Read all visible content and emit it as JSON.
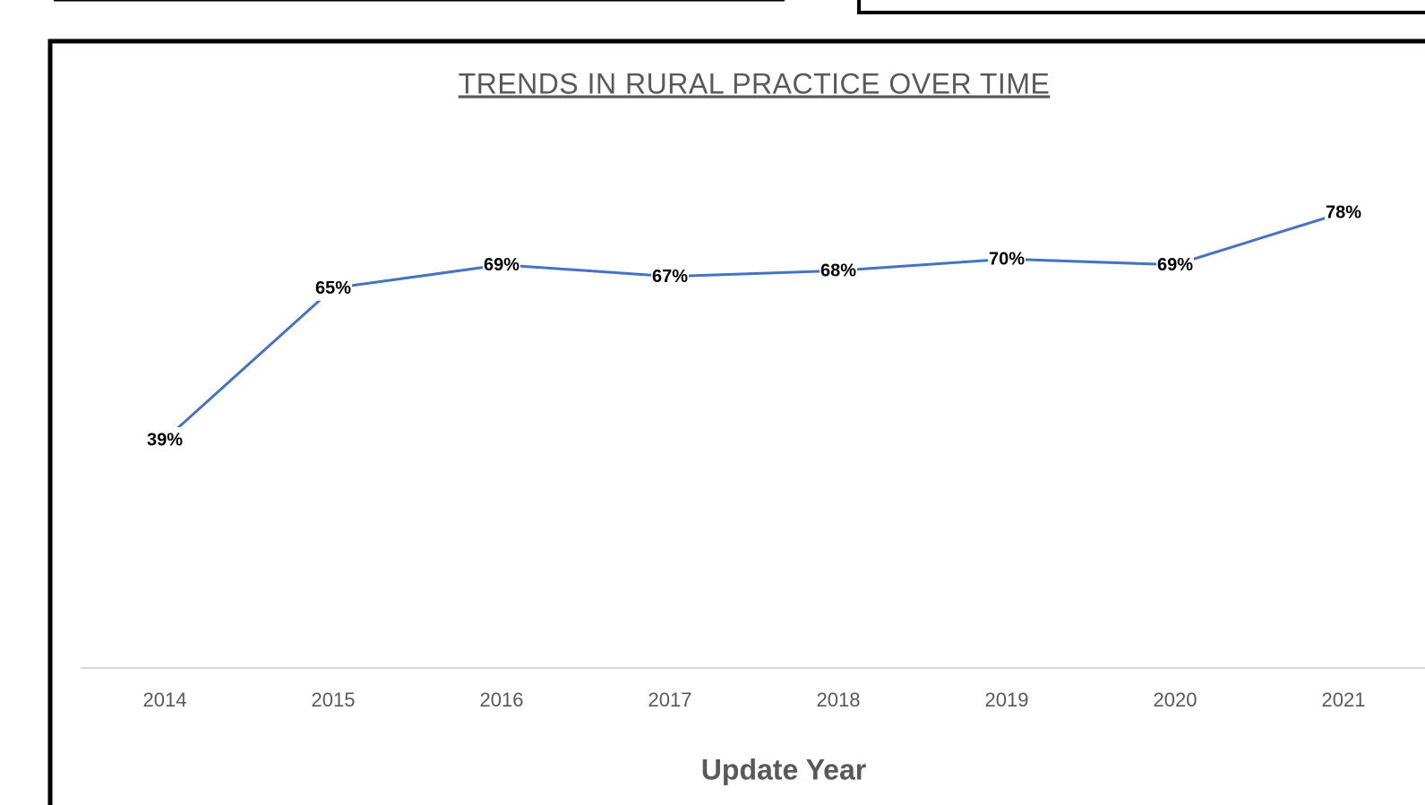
{
  "chart_data": {
    "type": "line",
    "title": "TRENDS IN RURAL PRACTICE OVER TIME",
    "x_label": "Update Year",
    "categories": [
      "2014",
      "2015",
      "2016",
      "2017",
      "2018",
      "2019",
      "2020",
      "2021"
    ],
    "series": [
      {
        "color": "#4472c4",
        "values": [
          39,
          65,
          69,
          67,
          68,
          70,
          69,
          78
        ],
        "value_labels": [
          "39%",
          "65%",
          "69%",
          "67%",
          "68%",
          "70%",
          "69%",
          "78%"
        ]
      }
    ],
    "ylim": [
      0,
      90
    ]
  }
}
